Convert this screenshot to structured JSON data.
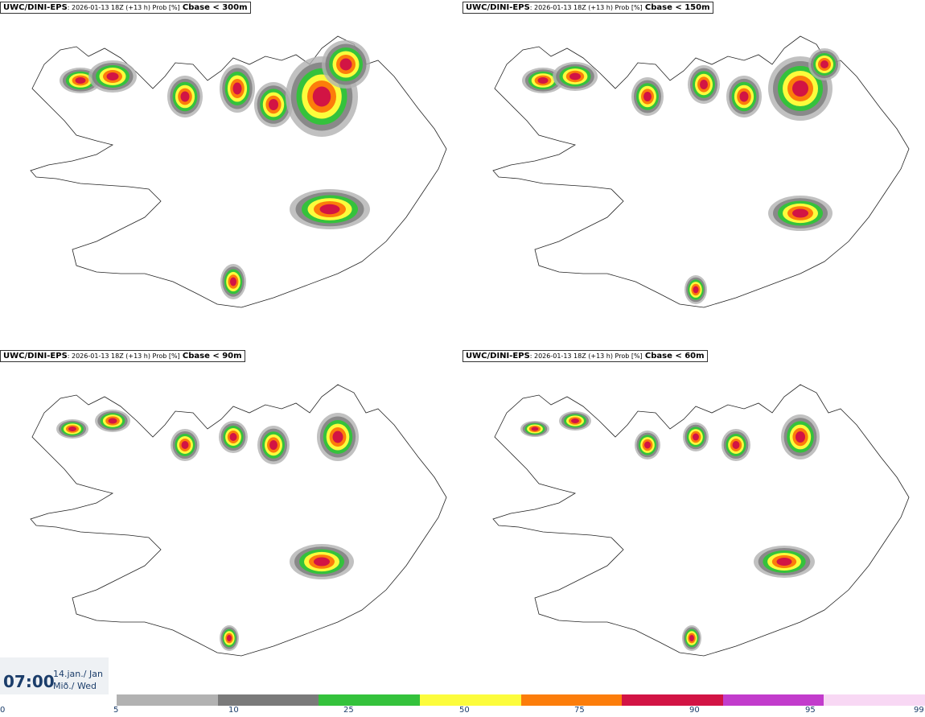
{
  "panels": [
    {
      "model": "UWC/DINI-EPS",
      "meta": ": 2026-01-13 18Z (+13 h) Prob [%]",
      "param": "Cbase < 300m"
    },
    {
      "model": "UWC/DINI-EPS",
      "meta": ": 2026-01-13 18Z (+13 h) Prob [%]",
      "param": "Cbase < 150m"
    },
    {
      "model": "UWC/DINI-EPS",
      "meta": ": 2026-01-13 18Z (+13 h) Prob [%]",
      "param": "Cbase < 90m"
    },
    {
      "model": "UWC/DINI-EPS",
      "meta": ": 2026-01-13 18Z (+13 h) Prob [%]",
      "param": "Cbase < 60m"
    }
  ],
  "valid": {
    "time": "07:00",
    "date_line1": "14.jan./ Jan",
    "date_line2": "Mið./ Wed"
  },
  "legend": {
    "ticks": [
      "0",
      "5",
      "10",
      "25",
      "50",
      "75",
      "90",
      "95",
      "99"
    ],
    "colors": [
      "#b2b2b2",
      "#7a7a7a",
      "#34c23c",
      "#fcfc3c",
      "#fc7d0a",
      "#d21444",
      "#c23ccc",
      "#f8d8f4"
    ]
  }
}
